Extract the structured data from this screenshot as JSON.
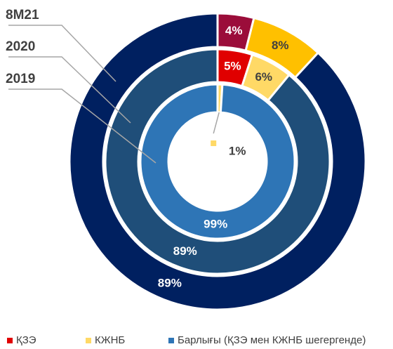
{
  "chart_data": {
    "type": "donut",
    "categories": [
      "ҚЗЭ",
      "КЖНБ",
      "Барлығы (ҚЗЭ мен КЖНБ шегергенде)"
    ],
    "legend_colors": [
      "#e00000",
      "#ffd966",
      "#2e75b6"
    ],
    "rings": [
      {
        "name": "8M21",
        "values": [
          4,
          8,
          89
        ],
        "value_labels": [
          "4%",
          "8%",
          "89%"
        ],
        "colors": [
          "#9b0d3a",
          "#ffc000",
          "#002060"
        ]
      },
      {
        "name": "2020",
        "values": [
          5,
          6,
          89
        ],
        "value_labels": [
          "5%",
          "6%",
          "89%"
        ],
        "colors": [
          "#e00000",
          "#ffd966",
          "#1f4e79"
        ]
      },
      {
        "name": "2019",
        "values": [
          null,
          1,
          99
        ],
        "value_labels": [
          null,
          "1%",
          "99%"
        ],
        "colors": [
          "#e00000",
          "#ffd966",
          "#2e75b6"
        ]
      }
    ]
  }
}
